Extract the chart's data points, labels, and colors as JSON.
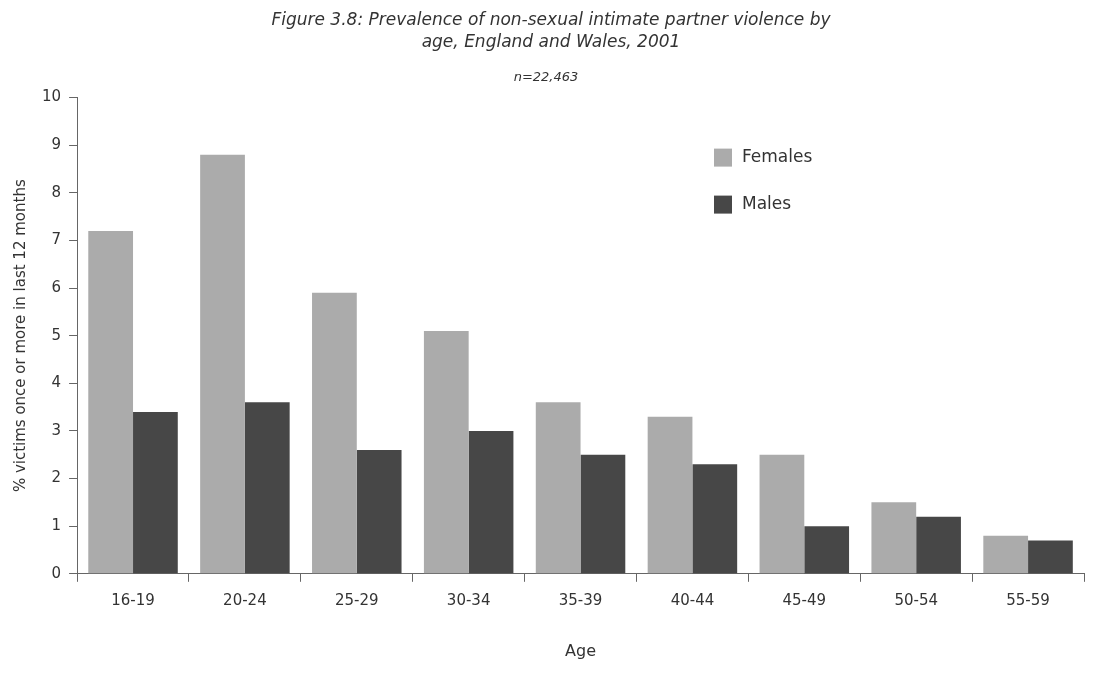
{
  "chart_data": {
    "type": "bar",
    "title": "Figure 3.8: Prevalence of non-sexual intimate partner violence by age, England and Wales, 2001",
    "subtitle": "n=22,463",
    "xlabel": "Age",
    "ylabel": "% victims once or more in last 12 months",
    "categories": [
      "16-19",
      "20-24",
      "25-29",
      "30-34",
      "35-39",
      "40-44",
      "45-49",
      "50-54",
      "55-59"
    ],
    "series": [
      {
        "name": "Females",
        "color": "#ababab",
        "values": [
          7.2,
          8.8,
          5.9,
          5.1,
          3.6,
          3.3,
          2.5,
          1.5,
          0.8
        ]
      },
      {
        "name": "Males",
        "color": "#474747",
        "values": [
          3.4,
          3.6,
          2.6,
          3.0,
          2.5,
          2.3,
          1.0,
          1.2,
          0.7
        ]
      }
    ],
    "ylim": [
      0,
      10
    ],
    "yticks": [
      0,
      1,
      2,
      3,
      4,
      5,
      6,
      7,
      8,
      9,
      10
    ],
    "grid": false,
    "legend": "top right"
  }
}
